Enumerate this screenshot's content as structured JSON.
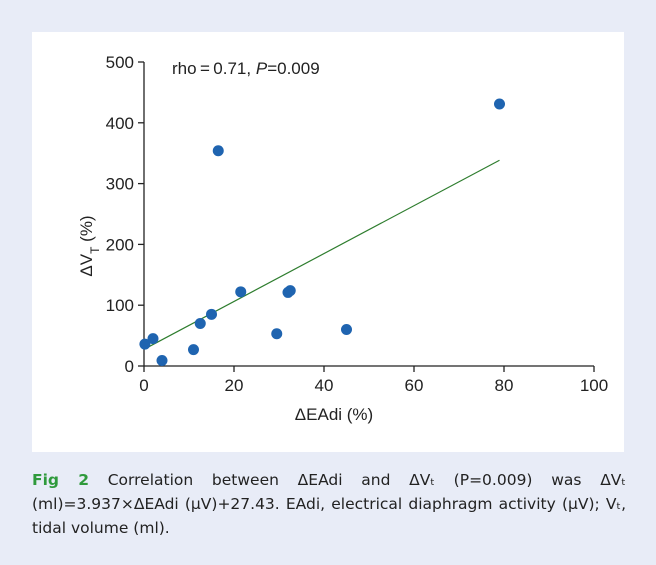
{
  "figure": {
    "label": "Fig 2",
    "caption": "Correlation between ΔEAdi and ΔVₜ (P=0.009) was ΔVₜ (ml)=3.937×ΔEAdi (μV)+27.43. EAdi, electrical diaphragm activity (μV); Vₜ, tidal volume (ml)."
  },
  "chart_data": {
    "type": "scatter",
    "xlabel": "ΔEAdi (%)",
    "ylabel_main": "ΔV",
    "ylabel_sub": "T",
    "ylabel_unit": " (%)",
    "annotation": {
      "stat_text": "rho = 0.71, ",
      "p_label": "P",
      "p_value": "=0.009"
    },
    "xlim": [
      0,
      100
    ],
    "ylim": [
      0,
      500
    ],
    "xticks": [
      0,
      20,
      40,
      60,
      80,
      100
    ],
    "yticks": [
      0,
      100,
      200,
      300,
      400,
      500
    ],
    "points": [
      {
        "x": 0.2,
        "y": 36
      },
      {
        "x": 2,
        "y": 45
      },
      {
        "x": 4,
        "y": 9
      },
      {
        "x": 11,
        "y": 27
      },
      {
        "x": 12.5,
        "y": 70
      },
      {
        "x": 15,
        "y": 85
      },
      {
        "x": 16.5,
        "y": 354
      },
      {
        "x": 21.5,
        "y": 122
      },
      {
        "x": 29.5,
        "y": 53
      },
      {
        "x": 32,
        "y": 121
      },
      {
        "x": 32.5,
        "y": 124
      },
      {
        "x": 45,
        "y": 60
      },
      {
        "x": 79,
        "y": 431
      }
    ],
    "regression": {
      "slope": 3.937,
      "intercept": 27.43,
      "x_range": [
        0,
        79
      ]
    },
    "colors": {
      "points": "#1f64b0",
      "line": "#2e7d2e",
      "axis": "#222222"
    }
  }
}
